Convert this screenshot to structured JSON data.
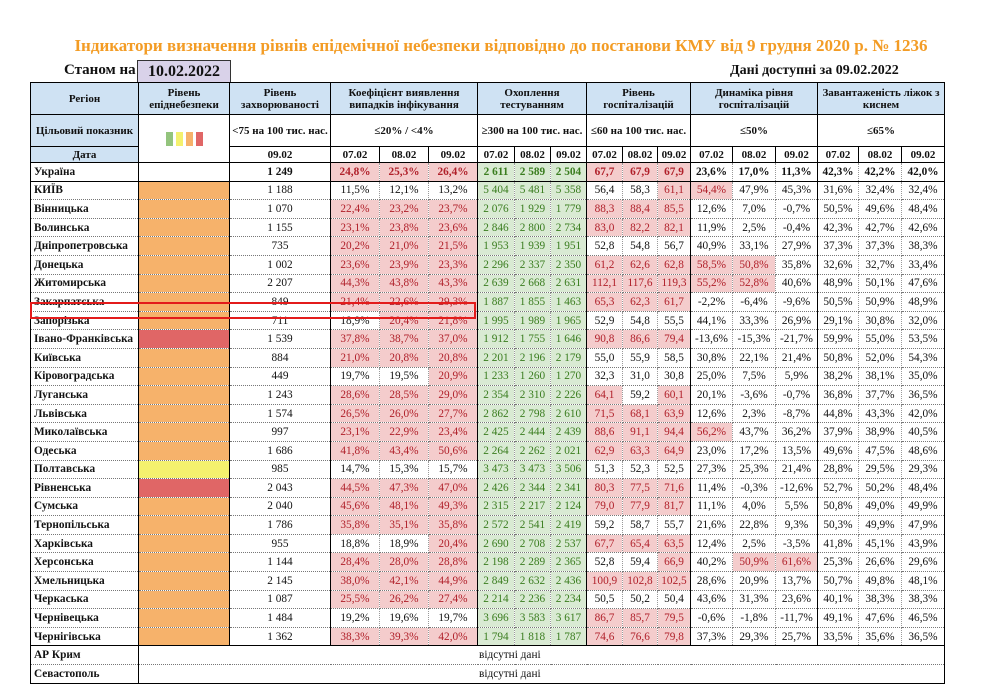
{
  "title": "Індикатори визначення рівнів епідемічної небезпеки відповідно до постанови КМУ від 9 грудня 2020 р. № 1236",
  "as_of_label": "Станом на",
  "as_of_date": "10.02.2022",
  "data_available": "Дані доступні за  09.02.2022",
  "colors": {
    "green": "#93c47d",
    "yellow": "#f4f16e",
    "orange": "#f6b26b",
    "red": "#e06666",
    "header_bg": "#cfe2f3",
    "cell_red_bg": "#f4cccc",
    "cell_green_bg": "#d9ead3",
    "title": "#f39c25",
    "highlight": "#e31b1b"
  },
  "headers": {
    "region": "Регіон",
    "level": "Рівень епіднебезпеки",
    "incidence": "Рівень захворюваності",
    "detection": "Коефіцієнт виявлення випадків інфікування",
    "testing": "Охоплення тестуванням",
    "hosp": "Рівень госпіталізацій",
    "hosp_dyn": "Динаміка рівня госпіталізацій",
    "oxygen": "Завантаженість ліжок з киснем",
    "target_label": "Цільовий показник",
    "target_incidence": "<75 на 100 тис. нас.",
    "target_detection": "≤20% / <4%",
    "target_testing": "≥300 на 100 тис. нас.",
    "target_hosp": "≤60 на 100 тис. нас.",
    "target_hosp_dyn": "≤50%",
    "target_oxygen": "≤65%",
    "date_label": "Дата",
    "inc_date": "09.02",
    "dates": [
      "07.02",
      "08.02",
      "09.02"
    ],
    "legend": [
      "green",
      "yellow",
      "orange",
      "red"
    ]
  },
  "ukraine": {
    "region": "Україна",
    "incidence": "1 249",
    "detection": [
      "24,8%",
      "25,3%",
      "26,4%"
    ],
    "testing": [
      "2 611",
      "2 589",
      "2 504"
    ],
    "hosp": [
      "67,7",
      "67,9",
      "67,9"
    ],
    "hosp_dyn": [
      "23,6%",
      "17,0%",
      "11,3%"
    ],
    "oxygen": [
      "42,3%",
      "42,2%",
      "42,0%"
    ],
    "det_red": [
      1,
      1,
      1
    ],
    "hosp_red": [
      1,
      1,
      1
    ],
    "dyn_red": [
      0,
      0,
      0
    ]
  },
  "rows": [
    {
      "region": "КИЇВ",
      "level": "orange",
      "incidence": "1 188",
      "detection": [
        "11,5%",
        "12,1%",
        "13,2%"
      ],
      "det_red": [
        0,
        0,
        0
      ],
      "testing": [
        "5 404",
        "5 481",
        "5 358"
      ],
      "hosp": [
        "56,4",
        "58,3",
        "61,1"
      ],
      "hosp_red": [
        0,
        0,
        1
      ],
      "hosp_dyn": [
        "54,4%",
        "47,9%",
        "45,3%"
      ],
      "dyn_red": [
        1,
        0,
        0
      ],
      "oxygen": [
        "31,6%",
        "32,4%",
        "32,4%"
      ]
    },
    {
      "region": "Вінницька",
      "level": "orange",
      "incidence": "1 070",
      "detection": [
        "22,4%",
        "23,2%",
        "23,7%"
      ],
      "det_red": [
        1,
        1,
        1
      ],
      "testing": [
        "2 076",
        "1 929",
        "1 779"
      ],
      "hosp": [
        "88,3",
        "88,4",
        "85,5"
      ],
      "hosp_red": [
        1,
        1,
        1
      ],
      "hosp_dyn": [
        "12,6%",
        "7,0%",
        "-0,7%"
      ],
      "dyn_red": [
        0,
        0,
        0
      ],
      "oxygen": [
        "50,5%",
        "49,6%",
        "48,4%"
      ]
    },
    {
      "region": "Волинська",
      "level": "orange",
      "incidence": "1 155",
      "detection": [
        "23,1%",
        "23,8%",
        "23,6%"
      ],
      "det_red": [
        1,
        1,
        1
      ],
      "testing": [
        "2 846",
        "2 800",
        "2 734"
      ],
      "hosp": [
        "83,0",
        "82,2",
        "82,1"
      ],
      "hosp_red": [
        1,
        1,
        1
      ],
      "hosp_dyn": [
        "11,9%",
        "2,5%",
        "-0,4%"
      ],
      "dyn_red": [
        0,
        0,
        0
      ],
      "oxygen": [
        "42,3%",
        "42,7%",
        "42,6%"
      ]
    },
    {
      "region": "Дніпропетровська",
      "level": "orange",
      "incidence": "735",
      "detection": [
        "20,2%",
        "21,0%",
        "21,5%"
      ],
      "det_red": [
        1,
        1,
        1
      ],
      "testing": [
        "1 953",
        "1 939",
        "1 951"
      ],
      "hosp": [
        "52,8",
        "54,8",
        "56,7"
      ],
      "hosp_red": [
        0,
        0,
        0
      ],
      "hosp_dyn": [
        "40,9%",
        "33,1%",
        "27,9%"
      ],
      "dyn_red": [
        0,
        0,
        0
      ],
      "oxygen": [
        "37,3%",
        "37,3%",
        "38,3%"
      ]
    },
    {
      "region": "Донецька",
      "level": "orange",
      "incidence": "1 002",
      "detection": [
        "23,6%",
        "23,9%",
        "23,3%"
      ],
      "det_red": [
        1,
        1,
        1
      ],
      "testing": [
        "2 296",
        "2 337",
        "2 350"
      ],
      "hosp": [
        "61,2",
        "62,6",
        "62,8"
      ],
      "hosp_red": [
        1,
        1,
        1
      ],
      "hosp_dyn": [
        "58,5%",
        "50,8%",
        "35,8%"
      ],
      "dyn_red": [
        1,
        1,
        0
      ],
      "oxygen": [
        "32,6%",
        "32,7%",
        "33,4%"
      ]
    },
    {
      "region": "Житомирська",
      "level": "orange",
      "incidence": "2 207",
      "detection": [
        "44,3%",
        "43,8%",
        "43,3%"
      ],
      "det_red": [
        1,
        1,
        1
      ],
      "testing": [
        "2 639",
        "2 668",
        "2 631"
      ],
      "hosp": [
        "112,1",
        "117,6",
        "119,3"
      ],
      "hosp_red": [
        1,
        1,
        1
      ],
      "hosp_dyn": [
        "55,2%",
        "52,8%",
        "40,6%"
      ],
      "dyn_red": [
        1,
        1,
        0
      ],
      "oxygen": [
        "48,9%",
        "50,1%",
        "47,6%"
      ]
    },
    {
      "region": "Закарпатська",
      "level": "orange",
      "incidence": "849",
      "detection": [
        "21,4%",
        "22,6%",
        "29,3%"
      ],
      "det_red": [
        1,
        1,
        1
      ],
      "testing": [
        "1 887",
        "1 855",
        "1 463"
      ],
      "hosp": [
        "65,3",
        "62,3",
        "61,7"
      ],
      "hosp_red": [
        1,
        1,
        1
      ],
      "hosp_dyn": [
        "-2,2%",
        "-6,4%",
        "-9,6%"
      ],
      "dyn_red": [
        0,
        0,
        0
      ],
      "oxygen": [
        "50,5%",
        "50,9%",
        "48,9%"
      ]
    },
    {
      "region": "Запорізька",
      "level": "orange",
      "incidence": "711",
      "detection": [
        "18,9%",
        "20,4%",
        "21,8%"
      ],
      "det_red": [
        0,
        1,
        1
      ],
      "testing": [
        "1 995",
        "1 989",
        "1 965"
      ],
      "hosp": [
        "52,9",
        "54,8",
        "55,5"
      ],
      "hosp_red": [
        0,
        0,
        0
      ],
      "hosp_dyn": [
        "44,1%",
        "33,3%",
        "26,9%"
      ],
      "dyn_red": [
        0,
        0,
        0
      ],
      "oxygen": [
        "29,1%",
        "30,8%",
        "32,0%"
      ],
      "highlighted": true
    },
    {
      "region": "Івано-Франківська",
      "level": "red",
      "incidence": "1 539",
      "detection": [
        "37,8%",
        "38,7%",
        "37,0%"
      ],
      "det_red": [
        1,
        1,
        1
      ],
      "testing": [
        "1 912",
        "1 755",
        "1 646"
      ],
      "hosp": [
        "90,8",
        "86,6",
        "79,4"
      ],
      "hosp_red": [
        1,
        1,
        1
      ],
      "hosp_dyn": [
        "-13,6%",
        "-15,3%",
        "-21,7%"
      ],
      "dyn_red": [
        0,
        0,
        0
      ],
      "oxygen": [
        "59,9%",
        "55,0%",
        "53,5%"
      ]
    },
    {
      "region": "Київська",
      "level": "orange",
      "incidence": "884",
      "detection": [
        "21,0%",
        "20,8%",
        "20,8%"
      ],
      "det_red": [
        1,
        1,
        1
      ],
      "testing": [
        "2 201",
        "2 196",
        "2 179"
      ],
      "hosp": [
        "55,0",
        "55,9",
        "58,5"
      ],
      "hosp_red": [
        0,
        0,
        0
      ],
      "hosp_dyn": [
        "30,8%",
        "22,1%",
        "21,4%"
      ],
      "dyn_red": [
        0,
        0,
        0
      ],
      "oxygen": [
        "50,8%",
        "52,0%",
        "54,3%"
      ]
    },
    {
      "region": "Кіровоградська",
      "level": "orange",
      "incidence": "449",
      "detection": [
        "19,7%",
        "19,5%",
        "20,9%"
      ],
      "det_red": [
        0,
        0,
        1
      ],
      "testing": [
        "1 233",
        "1 260",
        "1 270"
      ],
      "hosp": [
        "32,3",
        "31,0",
        "30,8"
      ],
      "hosp_red": [
        0,
        0,
        0
      ],
      "hosp_dyn": [
        "25,0%",
        "7,5%",
        "5,9%"
      ],
      "dyn_red": [
        0,
        0,
        0
      ],
      "oxygen": [
        "38,2%",
        "38,1%",
        "35,0%"
      ]
    },
    {
      "region": "Луганська",
      "level": "orange",
      "incidence": "1 243",
      "detection": [
        "28,6%",
        "28,5%",
        "29,0%"
      ],
      "det_red": [
        1,
        1,
        1
      ],
      "testing": [
        "2 354",
        "2 310",
        "2 226"
      ],
      "hosp": [
        "64,1",
        "59,2",
        "60,1"
      ],
      "hosp_red": [
        1,
        0,
        1
      ],
      "hosp_dyn": [
        "20,1%",
        "-3,6%",
        "-0,7%"
      ],
      "dyn_red": [
        0,
        0,
        0
      ],
      "oxygen": [
        "36,8%",
        "37,7%",
        "36,5%"
      ]
    },
    {
      "region": "Львівська",
      "level": "orange",
      "incidence": "1 574",
      "detection": [
        "26,5%",
        "26,0%",
        "27,7%"
      ],
      "det_red": [
        1,
        1,
        1
      ],
      "testing": [
        "2 862",
        "2 798",
        "2 610"
      ],
      "hosp": [
        "71,5",
        "68,1",
        "63,9"
      ],
      "hosp_red": [
        1,
        1,
        1
      ],
      "hosp_dyn": [
        "12,6%",
        "2,3%",
        "-8,7%"
      ],
      "dyn_red": [
        0,
        0,
        0
      ],
      "oxygen": [
        "44,8%",
        "43,3%",
        "42,0%"
      ]
    },
    {
      "region": "Миколаївська",
      "level": "orange",
      "incidence": "997",
      "detection": [
        "23,1%",
        "22,9%",
        "23,4%"
      ],
      "det_red": [
        1,
        1,
        1
      ],
      "testing": [
        "2 425",
        "2 444",
        "2 439"
      ],
      "hosp": [
        "88,6",
        "91,1",
        "94,4"
      ],
      "hosp_red": [
        1,
        1,
        1
      ],
      "hosp_dyn": [
        "56,2%",
        "43,7%",
        "36,2%"
      ],
      "dyn_red": [
        1,
        0,
        0
      ],
      "oxygen": [
        "37,9%",
        "38,9%",
        "40,5%"
      ]
    },
    {
      "region": "Одеська",
      "level": "orange",
      "incidence": "1 686",
      "detection": [
        "41,8%",
        "43,4%",
        "50,6%"
      ],
      "det_red": [
        1,
        1,
        1
      ],
      "testing": [
        "2 264",
        "2 262",
        "2 021"
      ],
      "hosp": [
        "62,9",
        "63,3",
        "64,9"
      ],
      "hosp_red": [
        1,
        1,
        1
      ],
      "hosp_dyn": [
        "23,0%",
        "17,2%",
        "13,5%"
      ],
      "dyn_red": [
        0,
        0,
        0
      ],
      "oxygen": [
        "49,6%",
        "47,5%",
        "48,6%"
      ]
    },
    {
      "region": "Полтавська",
      "level": "yellow",
      "incidence": "985",
      "detection": [
        "14,7%",
        "15,3%",
        "15,7%"
      ],
      "det_red": [
        0,
        0,
        0
      ],
      "testing": [
        "3 473",
        "3 473",
        "3 506"
      ],
      "hosp": [
        "51,3",
        "52,3",
        "52,5"
      ],
      "hosp_red": [
        0,
        0,
        0
      ],
      "hosp_dyn": [
        "27,3%",
        "25,3%",
        "21,4%"
      ],
      "dyn_red": [
        0,
        0,
        0
      ],
      "oxygen": [
        "28,8%",
        "29,5%",
        "29,3%"
      ]
    },
    {
      "region": "Рівненська",
      "level": "red",
      "incidence": "2 043",
      "detection": [
        "44,5%",
        "47,3%",
        "47,0%"
      ],
      "det_red": [
        1,
        1,
        1
      ],
      "testing": [
        "2 426",
        "2 344",
        "2 341"
      ],
      "hosp": [
        "80,3",
        "77,5",
        "71,6"
      ],
      "hosp_red": [
        1,
        1,
        1
      ],
      "hosp_dyn": [
        "11,4%",
        "-0,3%",
        "-12,6%"
      ],
      "dyn_red": [
        0,
        0,
        0
      ],
      "oxygen": [
        "52,7%",
        "50,2%",
        "48,4%"
      ]
    },
    {
      "region": "Сумська",
      "level": "orange",
      "incidence": "2 040",
      "detection": [
        "45,6%",
        "48,1%",
        "49,3%"
      ],
      "det_red": [
        1,
        1,
        1
      ],
      "testing": [
        "2 315",
        "2 217",
        "2 124"
      ],
      "hosp": [
        "79,0",
        "77,9",
        "81,7"
      ],
      "hosp_red": [
        1,
        1,
        1
      ],
      "hosp_dyn": [
        "11,1%",
        "4,0%",
        "5,5%"
      ],
      "dyn_red": [
        0,
        0,
        0
      ],
      "oxygen": [
        "50,8%",
        "49,0%",
        "49,9%"
      ]
    },
    {
      "region": "Тернопільська",
      "level": "orange",
      "incidence": "1 786",
      "detection": [
        "35,8%",
        "35,1%",
        "35,8%"
      ],
      "det_red": [
        1,
        1,
        1
      ],
      "testing": [
        "2 572",
        "2 541",
        "2 419"
      ],
      "hosp": [
        "59,2",
        "58,7",
        "55,7"
      ],
      "hosp_red": [
        0,
        0,
        0
      ],
      "hosp_dyn": [
        "21,6%",
        "22,8%",
        "9,3%"
      ],
      "dyn_red": [
        0,
        0,
        0
      ],
      "oxygen": [
        "50,3%",
        "49,9%",
        "47,9%"
      ]
    },
    {
      "region": "Харківська",
      "level": "orange",
      "incidence": "955",
      "detection": [
        "18,8%",
        "18,9%",
        "20,4%"
      ],
      "det_red": [
        0,
        0,
        1
      ],
      "testing": [
        "2 690",
        "2 708",
        "2 537"
      ],
      "hosp": [
        "67,7",
        "65,4",
        "63,5"
      ],
      "hosp_red": [
        1,
        1,
        1
      ],
      "hosp_dyn": [
        "12,4%",
        "2,5%",
        "-3,5%"
      ],
      "dyn_red": [
        0,
        0,
        0
      ],
      "oxygen": [
        "41,8%",
        "45,1%",
        "43,9%"
      ]
    },
    {
      "region": "Херсонська",
      "level": "orange",
      "incidence": "1 144",
      "detection": [
        "28,4%",
        "28,0%",
        "28,8%"
      ],
      "det_red": [
        1,
        1,
        1
      ],
      "testing": [
        "2 198",
        "2 289",
        "2 365"
      ],
      "hosp": [
        "52,8",
        "59,4",
        "66,9"
      ],
      "hosp_red": [
        0,
        0,
        1
      ],
      "hosp_dyn": [
        "40,2%",
        "50,9%",
        "61,6%"
      ],
      "dyn_red": [
        0,
        1,
        1
      ],
      "oxygen": [
        "25,3%",
        "26,6%",
        "29,6%"
      ]
    },
    {
      "region": "Хмельницька",
      "level": "orange",
      "incidence": "2 145",
      "detection": [
        "38,0%",
        "42,1%",
        "44,9%"
      ],
      "det_red": [
        1,
        1,
        1
      ],
      "testing": [
        "2 849",
        "2 632",
        "2 436"
      ],
      "hosp": [
        "100,9",
        "102,8",
        "102,5"
      ],
      "hosp_red": [
        1,
        1,
        1
      ],
      "hosp_dyn": [
        "28,6%",
        "20,9%",
        "13,7%"
      ],
      "dyn_red": [
        0,
        0,
        0
      ],
      "oxygen": [
        "50,7%",
        "49,8%",
        "48,1%"
      ]
    },
    {
      "region": "Черкаська",
      "level": "orange",
      "incidence": "1 087",
      "detection": [
        "25,5%",
        "26,2%",
        "27,4%"
      ],
      "det_red": [
        1,
        1,
        1
      ],
      "testing": [
        "2 214",
        "2 236",
        "2 234"
      ],
      "hosp": [
        "50,5",
        "50,2",
        "50,4"
      ],
      "hosp_red": [
        0,
        0,
        0
      ],
      "hosp_dyn": [
        "43,6%",
        "31,3%",
        "23,6%"
      ],
      "dyn_red": [
        0,
        0,
        0
      ],
      "oxygen": [
        "40,1%",
        "38,3%",
        "38,3%"
      ]
    },
    {
      "region": "Чернівецька",
      "level": "orange",
      "incidence": "1 484",
      "detection": [
        "19,2%",
        "19,6%",
        "19,7%"
      ],
      "det_red": [
        0,
        0,
        0
      ],
      "testing": [
        "3 696",
        "3 583",
        "3 617"
      ],
      "hosp": [
        "86,7",
        "85,7",
        "79,5"
      ],
      "hosp_red": [
        1,
        1,
        1
      ],
      "hosp_dyn": [
        "-0,6%",
        "-1,8%",
        "-11,7%"
      ],
      "dyn_red": [
        0,
        0,
        0
      ],
      "oxygen": [
        "49,1%",
        "47,6%",
        "46,5%"
      ]
    },
    {
      "region": "Чернігівська",
      "level": "orange",
      "incidence": "1 362",
      "detection": [
        "38,3%",
        "39,3%",
        "42,0%"
      ],
      "det_red": [
        1,
        1,
        1
      ],
      "testing": [
        "1 794",
        "1 818",
        "1 787"
      ],
      "hosp": [
        "74,6",
        "76,6",
        "79,8"
      ],
      "hosp_red": [
        1,
        1,
        1
      ],
      "hosp_dyn": [
        "37,3%",
        "29,3%",
        "25,7%"
      ],
      "dyn_red": [
        0,
        0,
        0
      ],
      "oxygen": [
        "33,5%",
        "35,6%",
        "36,5%"
      ]
    }
  ],
  "no_data_rows": [
    {
      "region": "АР Крим",
      "text": "відсутні дані"
    },
    {
      "region": "Севастополь",
      "text": "відсутні дані"
    }
  ]
}
